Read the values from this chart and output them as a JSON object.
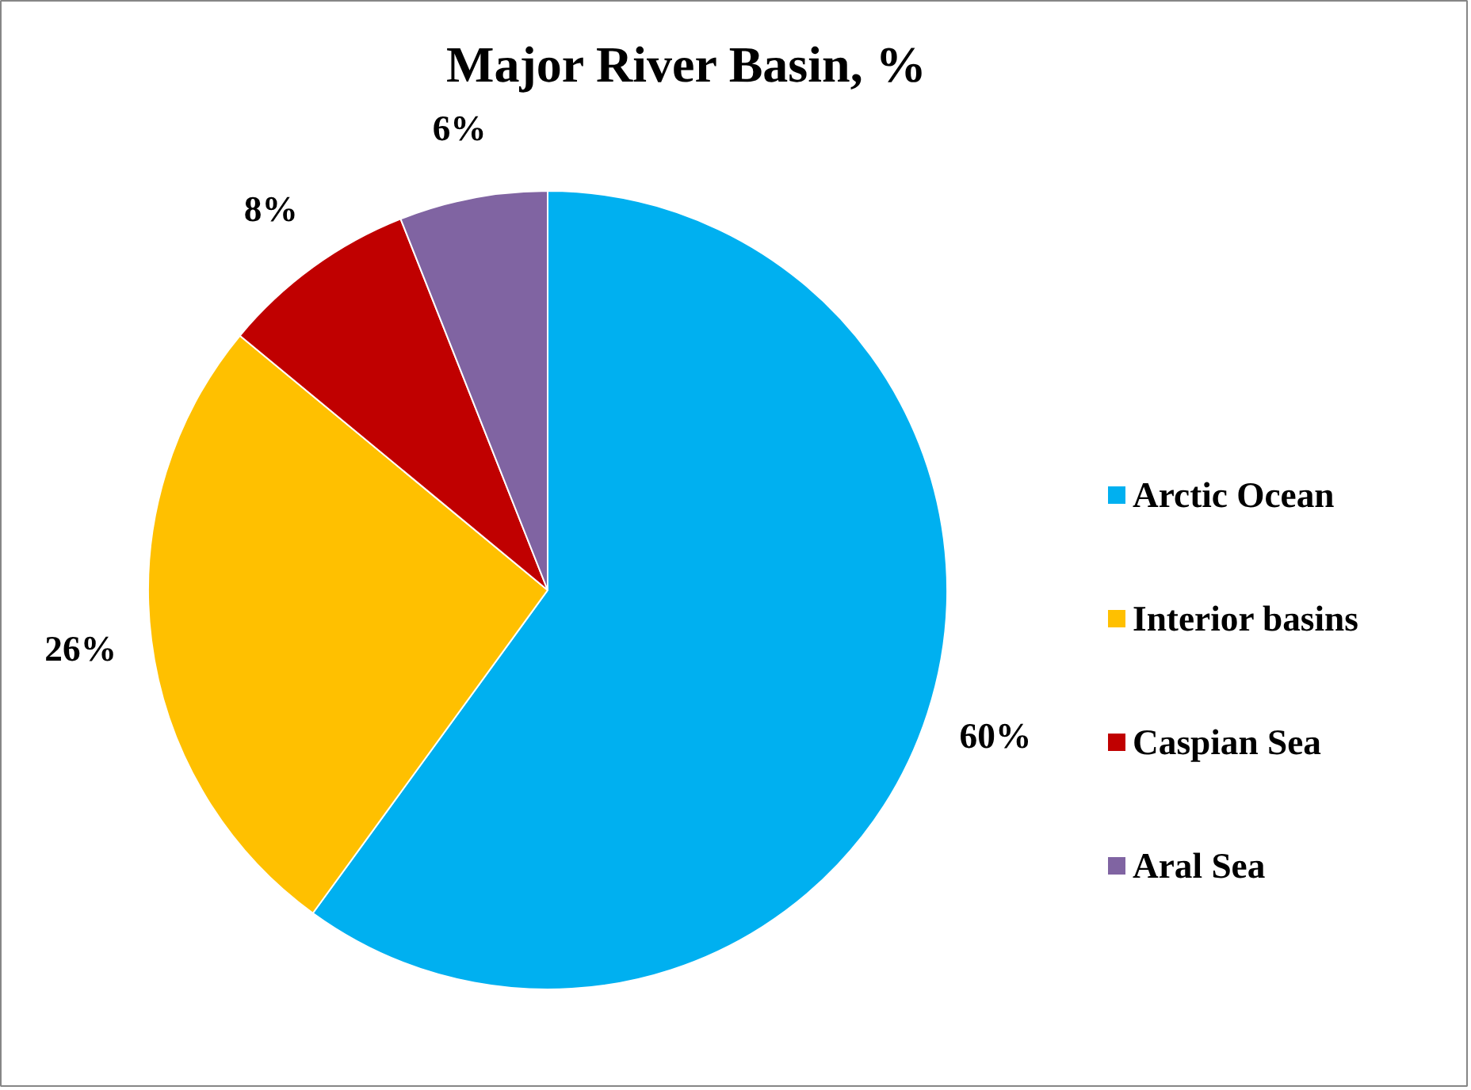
{
  "chart_data": {
    "type": "pie",
    "title": "Major River Basin, %",
    "categories": [
      "Arctic Ocean",
      "Interior basins",
      "Caspian Sea",
      "Aral Sea"
    ],
    "values": [
      60,
      26,
      8,
      6
    ],
    "colors": [
      "#00b0f0",
      "#ffc000",
      "#c00000",
      "#8064a2"
    ],
    "value_labels": [
      "60%",
      "26%",
      "8%",
      "6%"
    ],
    "legend": "right"
  }
}
